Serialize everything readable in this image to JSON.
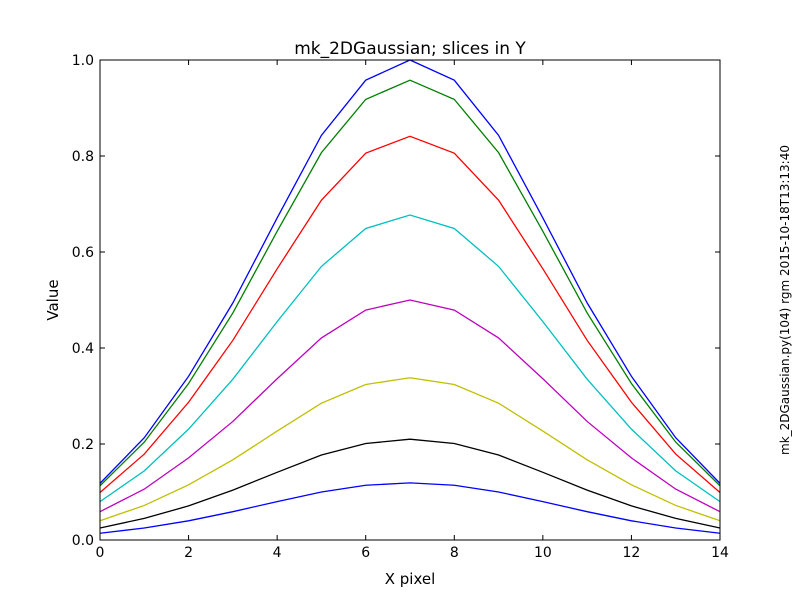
{
  "chart_data": {
    "type": "line",
    "title": "mk_2DGaussian; slices in Y",
    "xlabel": "X pixel",
    "ylabel": "Value",
    "side_note": "mk_2DGaussian.py(104) rgm 2015-10-18T13:13:40",
    "xlim": [
      0,
      14
    ],
    "ylim": [
      0.0,
      1.0
    ],
    "x_ticks": [
      "0",
      "2",
      "4",
      "6",
      "8",
      "10",
      "12",
      "14"
    ],
    "y_ticks": [
      "0.0",
      "0.2",
      "0.4",
      "0.6",
      "0.8",
      "1.0"
    ],
    "grid": false,
    "x": [
      0,
      1,
      2,
      3,
      4,
      5,
      6,
      7,
      8,
      9,
      10,
      11,
      12,
      13,
      14
    ],
    "series": [
      {
        "color": "#0000ff",
        "values": [
          0.118,
          0.213,
          0.341,
          0.494,
          0.671,
          0.843,
          0.958,
          1.0,
          0.958,
          0.843,
          0.671,
          0.494,
          0.341,
          0.213,
          0.118
        ]
      },
      {
        "color": "#007f00",
        "values": [
          0.113,
          0.204,
          0.326,
          0.473,
          0.643,
          0.807,
          0.918,
          0.958,
          0.918,
          0.807,
          0.643,
          0.473,
          0.326,
          0.204,
          0.113
        ]
      },
      {
        "color": "#ff0000",
        "values": [
          0.099,
          0.179,
          0.287,
          0.416,
          0.565,
          0.708,
          0.806,
          0.841,
          0.806,
          0.708,
          0.565,
          0.416,
          0.287,
          0.179,
          0.099
        ]
      },
      {
        "color": "#00bfbf",
        "values": [
          0.08,
          0.144,
          0.231,
          0.335,
          0.455,
          0.57,
          0.649,
          0.677,
          0.649,
          0.57,
          0.455,
          0.335,
          0.231,
          0.144,
          0.08
        ]
      },
      {
        "color": "#bf00bf",
        "values": [
          0.059,
          0.106,
          0.171,
          0.247,
          0.336,
          0.421,
          0.479,
          0.5,
          0.479,
          0.421,
          0.336,
          0.247,
          0.171,
          0.106,
          0.059
        ]
      },
      {
        "color": "#bfbf00",
        "values": [
          0.04,
          0.072,
          0.115,
          0.167,
          0.227,
          0.285,
          0.324,
          0.338,
          0.324,
          0.285,
          0.227,
          0.167,
          0.115,
          0.072,
          0.04
        ]
      },
      {
        "color": "#000000",
        "values": [
          0.025,
          0.045,
          0.071,
          0.104,
          0.141,
          0.177,
          0.201,
          0.21,
          0.201,
          0.177,
          0.141,
          0.104,
          0.071,
          0.045,
          0.025
        ]
      },
      {
        "color": "#0000ff",
        "values": [
          0.014,
          0.025,
          0.04,
          0.059,
          0.08,
          0.1,
          0.114,
          0.119,
          0.114,
          0.1,
          0.08,
          0.059,
          0.04,
          0.025,
          0.014
        ]
      }
    ]
  }
}
